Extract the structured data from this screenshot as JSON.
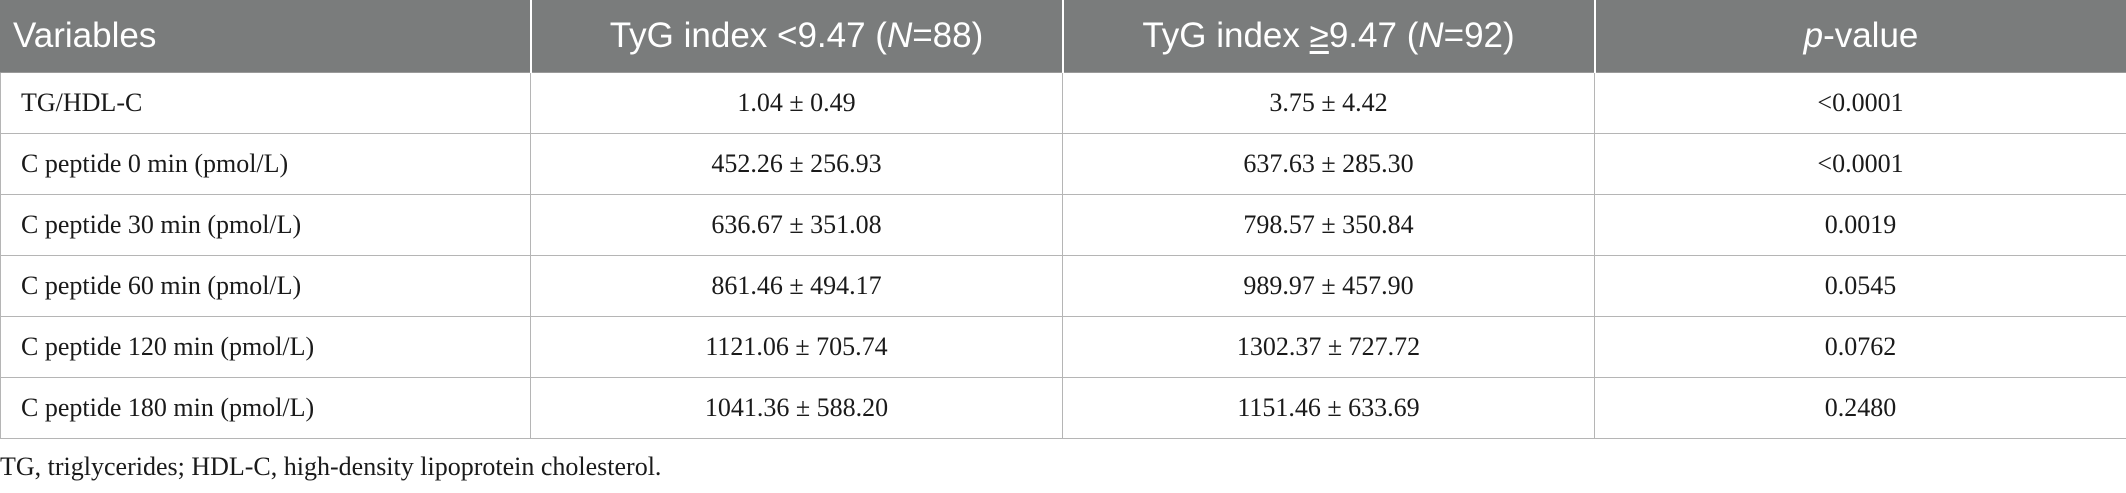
{
  "table": {
    "headers": {
      "variables": "Variables",
      "group1_prefix": "TyG index <9.47 (",
      "group1_n_label": "N",
      "group1_suffix": "=88)",
      "group2_prefix": "TyG index ",
      "group2_ge": "≥",
      "group2_value": "9.47 (",
      "group2_n_label": "N",
      "group2_suffix": "=92)",
      "pvalue_italic": "p",
      "pvalue_rest": "-value"
    },
    "rows": [
      {
        "variable": "TG/HDL-C",
        "group1": "1.04 ± 0.49",
        "group2": "3.75 ± 4.42",
        "p": "<0.0001"
      },
      {
        "variable": "C peptide 0 min (pmol/L)",
        "group1": "452.26 ± 256.93",
        "group2": "637.63 ± 285.30",
        "p": "<0.0001"
      },
      {
        "variable": "C peptide 30 min (pmol/L)",
        "group1": "636.67 ± 351.08",
        "group2": "798.57 ± 350.84",
        "p": "0.0019"
      },
      {
        "variable": "C peptide 60 min (pmol/L)",
        "group1": "861.46 ± 494.17",
        "group2": "989.97 ± 457.90",
        "p": "0.0545"
      },
      {
        "variable": "C peptide 120 min (pmol/L)",
        "group1": "1121.06 ± 705.74",
        "group2": "1302.37 ± 727.72",
        "p": "0.0762"
      },
      {
        "variable": "C peptide 180 min (pmol/L)",
        "group1": "1041.36 ± 588.20",
        "group2": "1151.46 ± 633.69",
        "p": "0.2480"
      }
    ]
  },
  "footnote": "TG, triglycerides; HDL-C, high-density lipoprotein cholesterol.",
  "colors": {
    "header_bg": "#7a7c7c",
    "header_text": "#ffffff",
    "border": "#b5b5b5"
  }
}
